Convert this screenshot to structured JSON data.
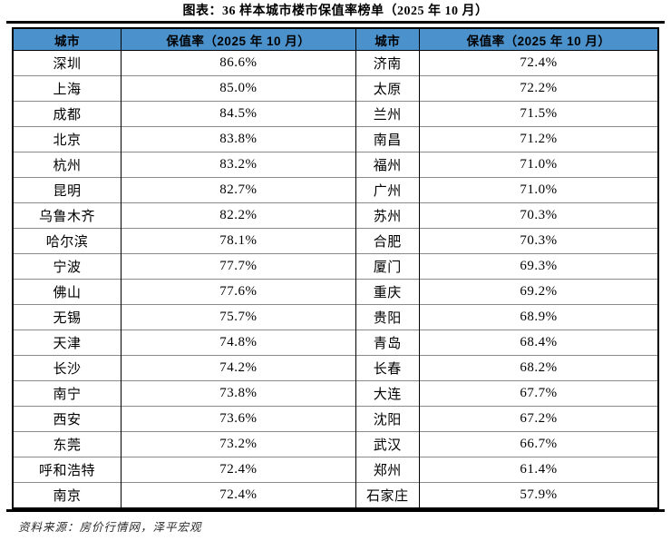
{
  "figure": {
    "title": "图表：36 样本城市楼市保值率榜单（2025 年 10 月）",
    "source_note": "资料来源：房价行情网，泽平宏观"
  },
  "colors": {
    "header_bg": "#4B92CC",
    "outer_border": "#000000",
    "row_line": "#8a8a8a"
  },
  "table": {
    "headers": {
      "city_left": "城市",
      "rate_left": "保值率（2025 年 10 月）",
      "city_right": "城市",
      "rate_right": "保值率（2025 年 10 月）"
    },
    "rows": [
      {
        "city_left": "深圳",
        "rate_left": "86.6%",
        "city_right": "济南",
        "rate_right": "72.4%"
      },
      {
        "city_left": "上海",
        "rate_left": "85.0%",
        "city_right": "太原",
        "rate_right": "72.2%"
      },
      {
        "city_left": "成都",
        "rate_left": "84.5%",
        "city_right": "兰州",
        "rate_right": "71.5%"
      },
      {
        "city_left": "北京",
        "rate_left": "83.8%",
        "city_right": "南昌",
        "rate_right": "71.2%"
      },
      {
        "city_left": "杭州",
        "rate_left": "83.2%",
        "city_right": "福州",
        "rate_right": "71.0%"
      },
      {
        "city_left": "昆明",
        "rate_left": "82.7%",
        "city_right": "广州",
        "rate_right": "71.0%"
      },
      {
        "city_left": "乌鲁木齐",
        "rate_left": "82.2%",
        "city_right": "苏州",
        "rate_right": "70.3%"
      },
      {
        "city_left": "哈尔滨",
        "rate_left": "78.1%",
        "city_right": "合肥",
        "rate_right": "70.3%"
      },
      {
        "city_left": "宁波",
        "rate_left": "77.7%",
        "city_right": "厦门",
        "rate_right": "69.3%"
      },
      {
        "city_left": "佛山",
        "rate_left": "77.6%",
        "city_right": "重庆",
        "rate_right": "69.2%"
      },
      {
        "city_left": "无锡",
        "rate_left": "75.7%",
        "city_right": "贵阳",
        "rate_right": "68.9%"
      },
      {
        "city_left": "天津",
        "rate_left": "74.8%",
        "city_right": "青岛",
        "rate_right": "68.4%"
      },
      {
        "city_left": "长沙",
        "rate_left": "74.2%",
        "city_right": "长春",
        "rate_right": "68.2%"
      },
      {
        "city_left": "南宁",
        "rate_left": "73.8%",
        "city_right": "大连",
        "rate_right": "67.7%"
      },
      {
        "city_left": "西安",
        "rate_left": "73.6%",
        "city_right": "沈阳",
        "rate_right": "67.2%"
      },
      {
        "city_left": "东莞",
        "rate_left": "73.2%",
        "city_right": "武汉",
        "rate_right": "66.7%"
      },
      {
        "city_left": "呼和浩特",
        "rate_left": "72.4%",
        "city_right": "郑州",
        "rate_right": "61.4%"
      },
      {
        "city_left": "南京",
        "rate_left": "72.4%",
        "city_right": "石家庄",
        "rate_right": "57.9%"
      }
    ]
  }
}
